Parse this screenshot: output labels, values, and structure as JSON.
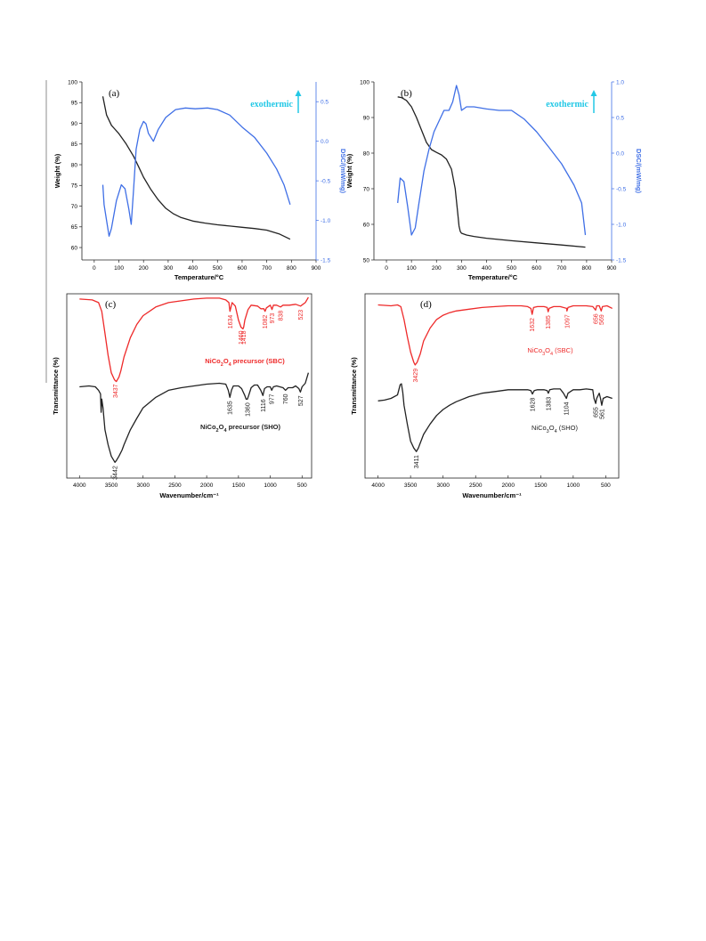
{
  "colors": {
    "black": "#222222",
    "blue": "#3f6fe6",
    "red": "#ee2a2a",
    "cyan": "#22c8e6"
  },
  "chart_data": [
    {
      "id": "a",
      "type": "line",
      "panel_label": "(a)",
      "xlabel": "Temperature/°C",
      "ylabel": "Weight (%)",
      "y2label": "DSC/(mW/mg)",
      "xlim": [
        -50,
        900
      ],
      "ylim": [
        57,
        100
      ],
      "y2lim": [
        -1.5,
        0.75
      ],
      "xticks": [
        0,
        100,
        200,
        300,
        400,
        500,
        600,
        700,
        800,
        900
      ],
      "yticks": [
        60,
        65,
        70,
        75,
        80,
        85,
        90,
        95,
        100
      ],
      "y2ticks": [
        -1.5,
        -1.0,
        -0.5,
        0.0,
        0.5
      ],
      "y2ticklabels": [
        "-1.5",
        "-1.0",
        "-0.5",
        "0.0",
        "0.5"
      ],
      "annotation": "exothermic",
      "grid": false,
      "series": [
        {
          "axis": "left",
          "color": "#222222",
          "x": [
            35,
            50,
            70,
            100,
            130,
            160,
            180,
            200,
            230,
            260,
            290,
            320,
            350,
            400,
            450,
            500,
            550,
            600,
            650,
            700,
            750,
            795
          ],
          "y": [
            96.5,
            92,
            89.5,
            87.5,
            85,
            82,
            79.5,
            77,
            74,
            71.5,
            69.5,
            68.2,
            67.3,
            66.4,
            65.9,
            65.5,
            65.2,
            64.9,
            64.6,
            64.2,
            63.3,
            62
          ]
        },
        {
          "axis": "right",
          "color": "#3f6fe6",
          "x": [
            35,
            40,
            50,
            60,
            70,
            90,
            110,
            125,
            140,
            150,
            160,
            170,
            185,
            200,
            210,
            220,
            240,
            260,
            290,
            330,
            370,
            410,
            460,
            500,
            550,
            600,
            650,
            700,
            740,
            770,
            795
          ],
          "y": [
            -0.55,
            -0.8,
            -1.0,
            -1.2,
            -1.1,
            -0.75,
            -0.55,
            -0.6,
            -0.85,
            -1.05,
            -0.6,
            -0.1,
            0.15,
            0.25,
            0.22,
            0.1,
            0.0,
            0.15,
            0.3,
            0.4,
            0.42,
            0.41,
            0.42,
            0.4,
            0.33,
            0.18,
            0.05,
            -0.15,
            -0.35,
            -0.55,
            -0.8
          ]
        }
      ]
    },
    {
      "id": "b",
      "type": "line",
      "panel_label": "(b)",
      "xlabel": "Temperature/°C",
      "ylabel": "Weight (%)",
      "y2label": "DSC/(mW/mg)",
      "xlim": [
        -50,
        900
      ],
      "ylim": [
        50,
        100
      ],
      "y2lim": [
        -1.5,
        1.0
      ],
      "xticks": [
        0,
        100,
        200,
        300,
        400,
        500,
        600,
        700,
        800,
        900
      ],
      "yticks": [
        50,
        60,
        70,
        80,
        90,
        100
      ],
      "y2ticks": [
        -1.5,
        -1.0,
        -0.5,
        0.0,
        0.5,
        1.0
      ],
      "y2ticklabels": [
        "-1.5",
        "-1.0",
        "-0.5",
        "0.0",
        "0.5",
        "1.0"
      ],
      "annotation": "exothermic",
      "grid": false,
      "series": [
        {
          "axis": "left",
          "color": "#222222",
          "x": [
            45,
            60,
            80,
            100,
            120,
            140,
            160,
            180,
            200,
            220,
            240,
            260,
            275,
            285,
            290,
            295,
            300,
            320,
            350,
            400,
            500,
            600,
            700,
            795
          ],
          "y": [
            95.8,
            95.6,
            94.8,
            93,
            90,
            86.5,
            83,
            81,
            80.2,
            79.5,
            78.3,
            75.5,
            70,
            63,
            59.5,
            58,
            57.5,
            57,
            56.6,
            56.1,
            55.4,
            54.8,
            54.2,
            53.6
          ]
        },
        {
          "axis": "right",
          "color": "#3f6fe6",
          "x": [
            45,
            55,
            70,
            85,
            100,
            115,
            130,
            150,
            170,
            190,
            210,
            230,
            250,
            265,
            280,
            290,
            300,
            320,
            350,
            400,
            450,
            500,
            550,
            600,
            650,
            700,
            750,
            780,
            795
          ],
          "y": [
            -0.7,
            -0.35,
            -0.4,
            -0.75,
            -1.15,
            -1.05,
            -0.7,
            -0.25,
            0.05,
            0.3,
            0.45,
            0.6,
            0.6,
            0.72,
            0.95,
            0.82,
            0.6,
            0.65,
            0.65,
            0.62,
            0.6,
            0.6,
            0.48,
            0.3,
            0.08,
            -0.15,
            -0.45,
            -0.7,
            -1.15
          ]
        }
      ]
    },
    {
      "id": "c",
      "type": "line",
      "panel_label": "(c)",
      "xlabel": "Wavenumber/cm⁻¹",
      "ylabel": "Transmittance (%)",
      "xlim": [
        4200,
        350
      ],
      "ylim": [
        -1.1,
        1.0
      ],
      "xreverse": true,
      "xticks": [
        4000,
        3500,
        3000,
        2500,
        2000,
        1500,
        1000,
        500
      ],
      "yticks": [],
      "grid": false,
      "series": [
        {
          "name_prefix": "NiCo",
          "sub1": "2",
          "name_mid": "O",
          "sub2": "4",
          "name_suffix": " precursor (SBC)",
          "color": "#ee2a2a",
          "x": [
            4000,
            3800,
            3700,
            3650,
            3600,
            3550,
            3500,
            3450,
            3420,
            3380,
            3350,
            3300,
            3200,
            3100,
            3000,
            2800,
            2600,
            2400,
            2200,
            2000,
            1800,
            1700,
            1650,
            1634,
            1600,
            1550,
            1500,
            1460,
            1430,
            1418,
            1400,
            1350,
            1300,
            1200,
            1150,
            1100,
            1082,
            1060,
            1000,
            973,
            950,
            900,
            838,
            800,
            700,
            600,
            523,
            450,
            400
          ],
          "y": [
            0.94,
            0.93,
            0.9,
            0.8,
            0.55,
            0.3,
            0.1,
            0.02,
            0.0,
            0.05,
            0.12,
            0.28,
            0.5,
            0.65,
            0.75,
            0.85,
            0.9,
            0.92,
            0.94,
            0.95,
            0.95,
            0.93,
            0.9,
            0.8,
            0.9,
            0.86,
            0.7,
            0.62,
            0.6,
            0.62,
            0.7,
            0.82,
            0.87,
            0.86,
            0.83,
            0.83,
            0.8,
            0.84,
            0.87,
            0.82,
            0.87,
            0.87,
            0.85,
            0.87,
            0.87,
            0.88,
            0.86,
            0.9,
            0.96
          ]
        },
        {
          "name_prefix": "NiCo",
          "sub1": "2",
          "name_mid": "O",
          "sub2": "4",
          "name_suffix": " precursor (SHO)",
          "color": "#222222",
          "x": [
            4000,
            3850,
            3750,
            3700,
            3670,
            3660,
            3650,
            3630,
            3600,
            3550,
            3500,
            3460,
            3442,
            3420,
            3380,
            3330,
            3300,
            3200,
            3100,
            3000,
            2800,
            2600,
            2400,
            2200,
            2000,
            1800,
            1700,
            1660,
            1635,
            1610,
            1580,
            1500,
            1450,
            1400,
            1380,
            1360,
            1340,
            1300,
            1250,
            1200,
            1150,
            1116,
            1090,
            1050,
            1000,
            977,
            950,
            900,
            800,
            760,
            720,
            650,
            600,
            550,
            527,
            500,
            450,
            400
          ],
          "y": [
            -0.06,
            -0.05,
            -0.06,
            -0.1,
            -0.14,
            -0.35,
            -0.2,
            -0.3,
            -0.55,
            -0.72,
            -0.85,
            -0.9,
            -0.92,
            -0.9,
            -0.85,
            -0.78,
            -0.72,
            -0.55,
            -0.42,
            -0.3,
            -0.18,
            -0.1,
            -0.07,
            -0.05,
            -0.03,
            -0.02,
            -0.03,
            -0.1,
            -0.18,
            -0.1,
            -0.05,
            -0.05,
            -0.08,
            -0.16,
            -0.2,
            -0.2,
            -0.16,
            -0.07,
            -0.04,
            -0.04,
            -0.1,
            -0.16,
            -0.08,
            -0.06,
            -0.06,
            -0.1,
            -0.06,
            -0.05,
            -0.07,
            -0.1,
            -0.07,
            -0.07,
            -0.05,
            -0.08,
            -0.12,
            -0.06,
            -0.02,
            0.1
          ]
        }
      ],
      "annotations": [
        {
          "text": "3437",
          "x": 3437,
          "color": "#ee2a2a"
        },
        {
          "text": "1634",
          "x": 1634,
          "color": "#ee2a2a"
        },
        {
          "text": "1460",
          "x": 1460,
          "color": "#ee2a2a"
        },
        {
          "text": "1418",
          "x": 1418,
          "color": "#ee2a2a"
        },
        {
          "text": "1082",
          "x": 1082,
          "color": "#ee2a2a"
        },
        {
          "text": "973",
          "x": 973,
          "color": "#ee2a2a"
        },
        {
          "text": "838",
          "x": 838,
          "color": "#ee2a2a"
        },
        {
          "text": "523",
          "x": 523,
          "color": "#ee2a2a"
        },
        {
          "text": "3442",
          "x": 3442,
          "color": "#222222"
        },
        {
          "text": "1635",
          "x": 1635,
          "color": "#222222"
        },
        {
          "text": "1360",
          "x": 1360,
          "color": "#222222"
        },
        {
          "text": "1116",
          "x": 1116,
          "color": "#222222"
        },
        {
          "text": "977",
          "x": 977,
          "color": "#222222"
        },
        {
          "text": "760",
          "x": 760,
          "color": "#222222"
        },
        {
          "text": "527",
          "x": 527,
          "color": "#222222"
        }
      ]
    },
    {
      "id": "d",
      "type": "line",
      "panel_label": "(d)",
      "xlabel": "Wavenumber/cm⁻¹",
      "ylabel": "Transmittance (%)",
      "xlim": [
        4200,
        300
      ],
      "ylim": [
        -1.15,
        1.0
      ],
      "xreverse": true,
      "xticks": [
        4000,
        3500,
        3000,
        2500,
        2000,
        1500,
        1000,
        500
      ],
      "yticks": [],
      "grid": false,
      "series": [
        {
          "name_prefix": "NiCo",
          "sub1": "3",
          "name_mid": "O",
          "sub2": "4",
          "name_suffix": " (SBC)",
          "color": "#ee2a2a",
          "x": [
            4000,
            3800,
            3700,
            3650,
            3600,
            3550,
            3500,
            3450,
            3429,
            3400,
            3350,
            3300,
            3200,
            3100,
            3000,
            2900,
            2800,
            2600,
            2400,
            2200,
            2000,
            1800,
            1700,
            1650,
            1632,
            1610,
            1550,
            1450,
            1400,
            1385,
            1370,
            1300,
            1200,
            1100,
            1097,
            1080,
            1000,
            900,
            800,
            700,
            656,
            640,
            600,
            569,
            550,
            480,
            400
          ],
          "y": [
            0.87,
            0.86,
            0.87,
            0.85,
            0.7,
            0.5,
            0.32,
            0.2,
            0.17,
            0.2,
            0.3,
            0.45,
            0.6,
            0.7,
            0.75,
            0.78,
            0.8,
            0.82,
            0.84,
            0.85,
            0.86,
            0.86,
            0.85,
            0.83,
            0.76,
            0.84,
            0.85,
            0.85,
            0.84,
            0.79,
            0.83,
            0.85,
            0.85,
            0.83,
            0.8,
            0.84,
            0.86,
            0.86,
            0.86,
            0.85,
            0.81,
            0.86,
            0.86,
            0.8,
            0.85,
            0.86,
            0.83
          ]
        },
        {
          "name_prefix": "NiCo",
          "sub1": "3",
          "name_mid": "O",
          "sub2": "4",
          "name_suffix": " (SHO)",
          "color": "#222222",
          "x": [
            4000,
            3900,
            3800,
            3700,
            3660,
            3640,
            3620,
            3600,
            3550,
            3500,
            3450,
            3411,
            3380,
            3350,
            3300,
            3200,
            3100,
            3000,
            2900,
            2800,
            2600,
            2400,
            2200,
            2000,
            1800,
            1700,
            1650,
            1628,
            1600,
            1550,
            1500,
            1450,
            1400,
            1383,
            1360,
            1300,
            1200,
            1150,
            1104,
            1080,
            1000,
            900,
            800,
            700,
            680,
            655,
            640,
            600,
            580,
            561,
            540,
            480,
            400
          ],
          "y": [
            -0.25,
            -0.24,
            -0.22,
            -0.18,
            -0.06,
            -0.05,
            -0.15,
            -0.3,
            -0.52,
            -0.72,
            -0.8,
            -0.84,
            -0.8,
            -0.74,
            -0.64,
            -0.52,
            -0.42,
            -0.35,
            -0.3,
            -0.26,
            -0.2,
            -0.16,
            -0.14,
            -0.12,
            -0.12,
            -0.12,
            -0.13,
            -0.17,
            -0.13,
            -0.12,
            -0.12,
            -0.12,
            -0.13,
            -0.16,
            -0.12,
            -0.11,
            -0.11,
            -0.16,
            -0.22,
            -0.16,
            -0.12,
            -0.12,
            -0.11,
            -0.12,
            -0.22,
            -0.28,
            -0.22,
            -0.16,
            -0.22,
            -0.3,
            -0.22,
            -0.2,
            -0.22
          ]
        }
      ],
      "annotations": [
        {
          "text": "3429",
          "x": 3429,
          "color": "#ee2a2a"
        },
        {
          "text": "1632",
          "x": 1632,
          "color": "#ee2a2a"
        },
        {
          "text": "1385",
          "x": 1385,
          "color": "#ee2a2a"
        },
        {
          "text": "1097",
          "x": 1097,
          "color": "#ee2a2a"
        },
        {
          "text": "656",
          "x": 656,
          "color": "#ee2a2a"
        },
        {
          "text": "569",
          "x": 569,
          "color": "#ee2a2a"
        },
        {
          "text": "3411",
          "x": 3411,
          "color": "#222222"
        },
        {
          "text": "1628",
          "x": 1628,
          "color": "#222222"
        },
        {
          "text": "1383",
          "x": 1383,
          "color": "#222222"
        },
        {
          "text": "1104",
          "x": 1104,
          "color": "#222222"
        },
        {
          "text": "655",
          "x": 655,
          "color": "#222222"
        },
        {
          "text": "561",
          "x": 561,
          "color": "#222222"
        }
      ]
    }
  ]
}
